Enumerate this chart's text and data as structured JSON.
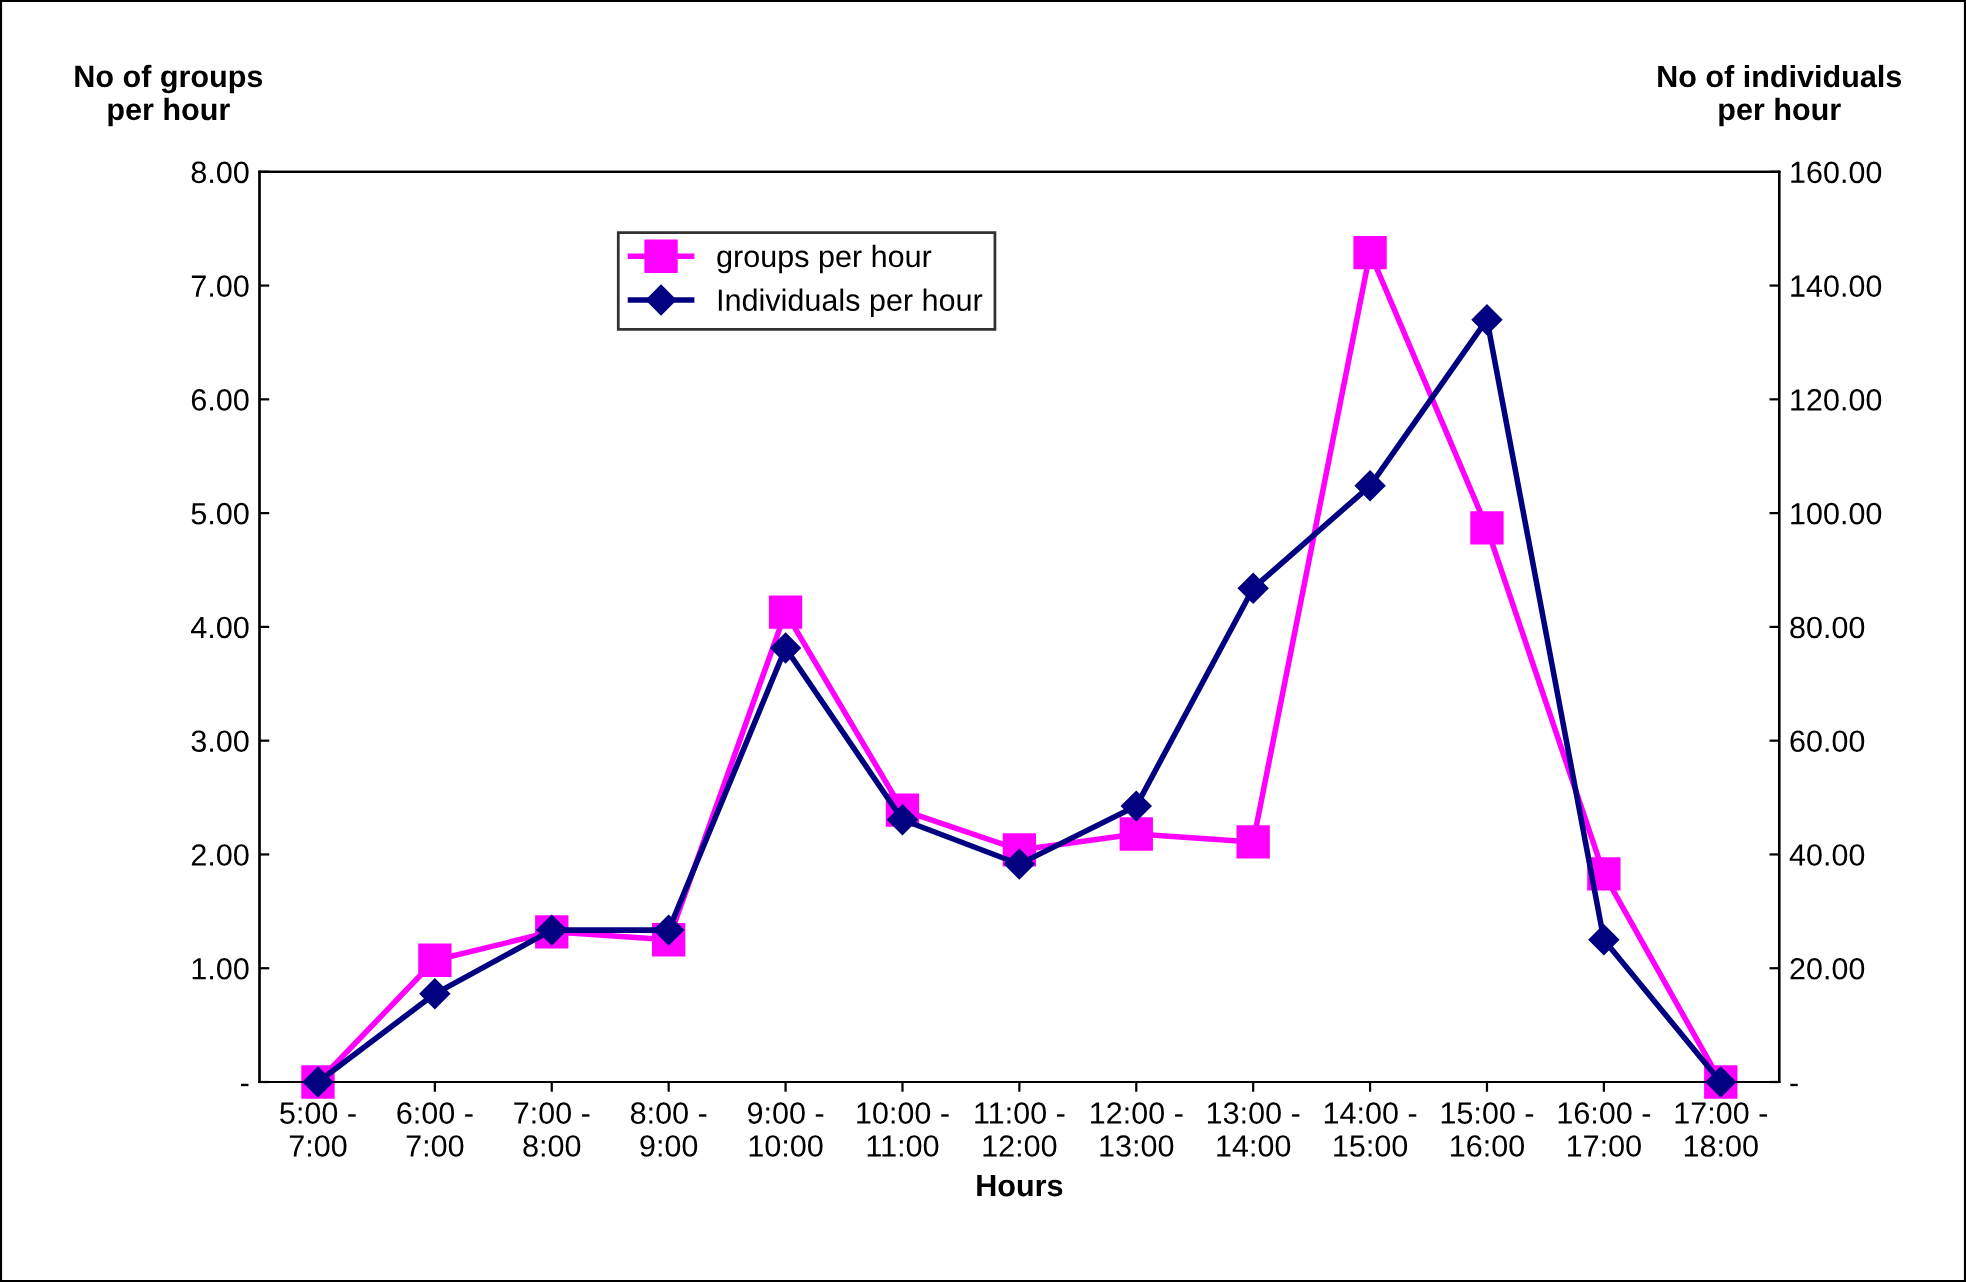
{
  "chart_data": {
    "type": "line",
    "xlabel": "Hours",
    "ylabel": "No of groups\nper hour",
    "y2label": "No of individuals\nper hour",
    "categories": [
      "5:00 -\n7:00",
      "6:00 -\n7:00",
      "7:00 -\n8:00",
      "8:00 -\n9:00",
      "9:00 -\n10:00",
      "10:00 -\n11:00",
      "11:00 -\n12:00",
      "12:00 -\n13:00",
      "13:00 -\n14:00",
      "14:00 -\n15:00",
      "15:00 -\n16:00",
      "16:00 -\n17:00",
      "17:00 -\n18:00"
    ],
    "series": [
      {
        "name": "groups per hour",
        "color": "#ff00ff",
        "marker": "square",
        "values": [
          0,
          1.07,
          1.32,
          1.25,
          4.13,
          2.39,
          2.04,
          2.18,
          2.11,
          7.29,
          4.87,
          1.83,
          0
        ]
      },
      {
        "name": "Individuals per hour",
        "color": "#000080",
        "marker": "diamond",
        "axis": "y2",
        "values": [
          0,
          15.5,
          26.7,
          26.7,
          76.3,
          46.1,
          38.3,
          48.5,
          86.8,
          104.8,
          134.0,
          25.0,
          0
        ]
      }
    ],
    "ylim": [
      0,
      8
    ],
    "yticks": [
      {
        "value": 0,
        "label": "-"
      },
      {
        "value": 1,
        "label": "1.00"
      },
      {
        "value": 2,
        "label": "2.00"
      },
      {
        "value": 3,
        "label": "3.00"
      },
      {
        "value": 4,
        "label": "4.00"
      },
      {
        "value": 5,
        "label": "5.00"
      },
      {
        "value": 6,
        "label": "6.00"
      },
      {
        "value": 7,
        "label": "7.00"
      },
      {
        "value": 8,
        "label": "8.00"
      }
    ],
    "y2lim": [
      0,
      160
    ],
    "y2ticks": [
      {
        "value": 0,
        "label": "-"
      },
      {
        "value": 20,
        "label": "20.00"
      },
      {
        "value": 40,
        "label": "40.00"
      },
      {
        "value": 60,
        "label": "60.00"
      },
      {
        "value": 80,
        "label": "80.00"
      },
      {
        "value": 100,
        "label": "100.00"
      },
      {
        "value": 120,
        "label": "120.00"
      },
      {
        "value": 140,
        "label": "140.00"
      },
      {
        "value": 160,
        "label": "160.00"
      }
    ],
    "legend": "top",
    "grid": false,
    "line_style": "solid"
  }
}
